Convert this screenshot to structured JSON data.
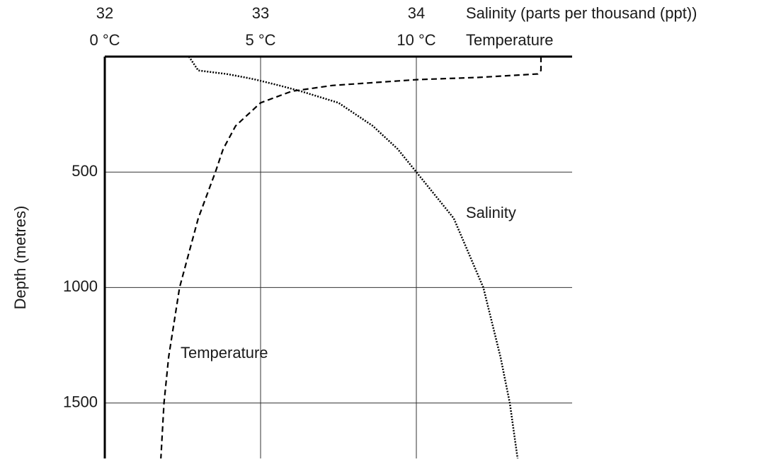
{
  "chart_data": {
    "type": "line",
    "x_label": "Salinity (parts per thousand (ppt))",
    "x2_label": "Temperature",
    "y_label": "Depth (metres)",
    "xlim": [
      32,
      35
    ],
    "xticks": [
      32,
      33,
      34
    ],
    "x2lim": [
      0,
      15
    ],
    "x2ticks": [
      {
        "value": 0,
        "label": "0 °C"
      },
      {
        "value": 5,
        "label": "5 °C"
      },
      {
        "value": 10,
        "label": "10 °C"
      }
    ],
    "ylim": [
      0,
      1740
    ],
    "yticks": [
      500,
      1000,
      1500
    ],
    "y_inverted": true,
    "grid": true,
    "y": [
      0,
      60,
      75,
      90,
      100,
      125,
      150,
      200,
      300,
      400,
      500,
      700,
      1000,
      1300,
      1500,
      1740
    ],
    "series": [
      {
        "name": "Temperature",
        "axis": "x2",
        "style": "dashed",
        "color": "#000000",
        "values": [
          14.0,
          14.0,
          13.9,
          12.0,
          10.0,
          7.3,
          6.0,
          5.0,
          4.2,
          3.8,
          3.55,
          3.0,
          2.4,
          2.05,
          1.9,
          1.8
        ]
      },
      {
        "name": "Salinity",
        "axis": "x",
        "style": "dotted",
        "color": "#000000",
        "values": [
          32.54,
          32.6,
          32.78,
          32.9,
          32.97,
          33.12,
          33.26,
          33.5,
          33.72,
          33.88,
          34.0,
          34.24,
          34.43,
          34.54,
          34.6,
          34.65
        ]
      }
    ]
  }
}
